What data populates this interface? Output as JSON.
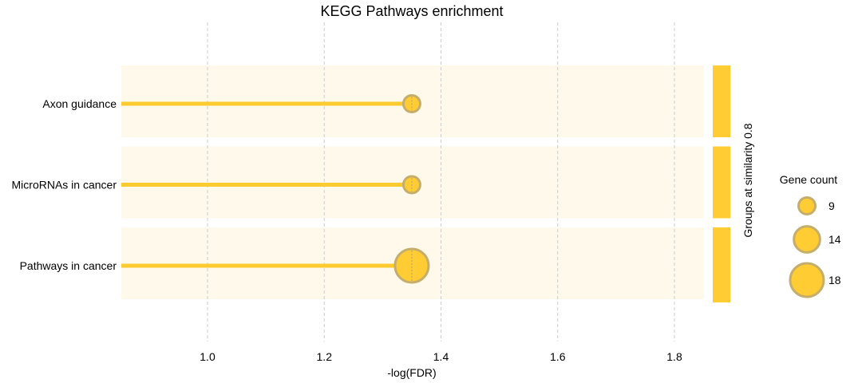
{
  "chart_data": {
    "type": "lollipop",
    "title": "KEGG Pathways enrichment",
    "xlabel": "-log(FDR)",
    "xlim": [
      0.85,
      1.9
    ],
    "xticks": [
      1.0,
      1.2,
      1.4,
      1.6,
      1.8
    ],
    "xtick_labels": [
      "1.0",
      "1.2",
      "1.4",
      "1.6",
      "1.8"
    ],
    "grid": "vertical dashed",
    "categories": [
      "Axon guidance",
      "MicroRNAs in cancer",
      "Pathways in cancer"
    ],
    "values": [
      1.35,
      1.35,
      1.35
    ],
    "gene_counts": [
      9,
      9,
      18
    ],
    "group_label": "Groups at similarity 0.8",
    "legend": {
      "title": "Gene count",
      "placement": "right",
      "entries": [
        {
          "label": "9",
          "value": 9
        },
        {
          "label": "14",
          "value": 14
        },
        {
          "label": "18",
          "value": 18
        }
      ]
    },
    "colors": {
      "stem": "#fbcb2f",
      "marker_fill": "#ffcc33",
      "marker_edge": "#c5ae6c",
      "band": "#fef9ea",
      "group_bar": "#ffcc33",
      "grid": "#cccccc"
    }
  }
}
